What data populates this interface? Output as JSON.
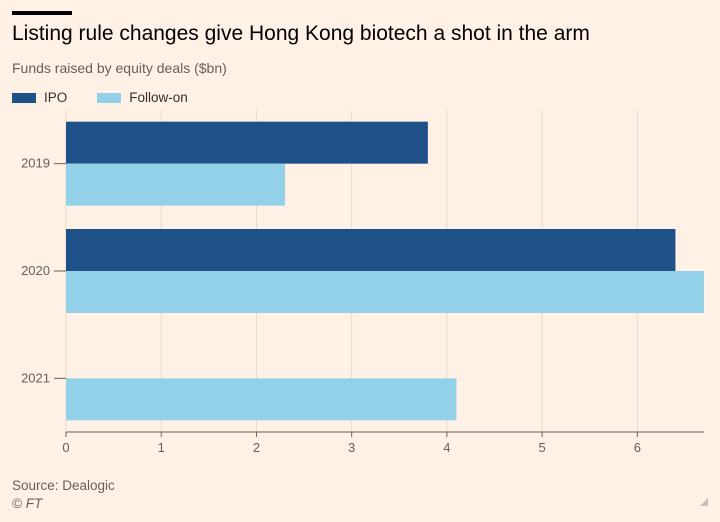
{
  "title": "Listing rule changes give Hong Kong biotech a shot in the arm",
  "subtitle": "Funds raised by equity deals ($bn)",
  "legend": [
    {
      "label": "IPO",
      "color": "#1f5189"
    },
    {
      "label": "Follow-on",
      "color": "#93d1e8"
    }
  ],
  "source": "Source: Dealogic",
  "credit": "© FT",
  "icons": {
    "corner": "resize-handle-icon"
  },
  "chart_data": {
    "type": "bar",
    "orientation": "horizontal",
    "title": "Listing rule changes give Hong Kong biotech a shot in the arm",
    "ylabel": "",
    "xlabel": "Funds raised by equity deals ($bn)",
    "categories": [
      "2019",
      "2020",
      "2021"
    ],
    "series": [
      {
        "name": "IPO",
        "color": "#1f5189",
        "values": [
          3.8,
          6.4,
          0
        ]
      },
      {
        "name": "Follow-on",
        "color": "#93d1e8",
        "values": [
          2.3,
          6.7,
          4.1
        ]
      }
    ],
    "xlim": [
      0,
      6.7
    ],
    "xticks": [
      0,
      1,
      2,
      3,
      4,
      5,
      6
    ],
    "grid": true,
    "legend_position": "top-left"
  }
}
